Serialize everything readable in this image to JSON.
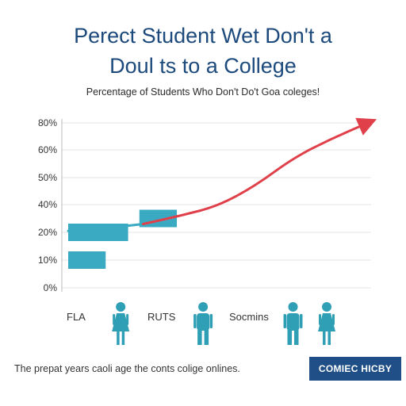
{
  "title_line1": "Perect Student Wet Don't a",
  "title_line2": "Doul ts to a College",
  "subtitle": "Percentage of Students Who Don't Do't Goa coleges!",
  "footer_note": "The prepat years caoli age the conts colige onlines.",
  "brand": "COMIEC HICBY",
  "colors": {
    "title": "#1d4a7c",
    "bar": "#3aaac2",
    "figure": "#2f9fb5",
    "trend": "#e0404a",
    "grid": "#e6e6e6",
    "brand_bg": "#1f4f86"
  },
  "chart_data": {
    "type": "bar",
    "title": "Percentage of Students Who Don't Do't Goa coleges!",
    "xlabel": "",
    "ylabel": "",
    "y_tick_labels": [
      "0%",
      "10%",
      "20%",
      "40%",
      "50%",
      "60%",
      "80%"
    ],
    "y_tick_values": [
      0,
      10,
      20,
      40,
      50,
      60,
      80
    ],
    "x_category_labels": [
      "FLA",
      "RUTS",
      "Socmins"
    ],
    "grid": true,
    "bars": [
      {
        "x_start": 0,
        "x_end": 1.0,
        "y": 10
      },
      {
        "x_start": 0,
        "x_end": 1.6,
        "y": 20
      },
      {
        "x_start": 1.9,
        "x_end": 2.9,
        "y": 30
      }
    ],
    "trend_line": {
      "x": [
        0,
        1,
        2,
        3,
        4,
        5,
        6,
        7,
        8
      ],
      "y": [
        21,
        23,
        26,
        32,
        39,
        47,
        57,
        68,
        80
      ],
      "arrow": true
    },
    "person_icons": [
      {
        "x": 1.4,
        "type": "female"
      },
      {
        "x": 3.6,
        "type": "male"
      },
      {
        "x": 6.0,
        "type": "male"
      },
      {
        "x": 6.9,
        "type": "female"
      }
    ]
  }
}
